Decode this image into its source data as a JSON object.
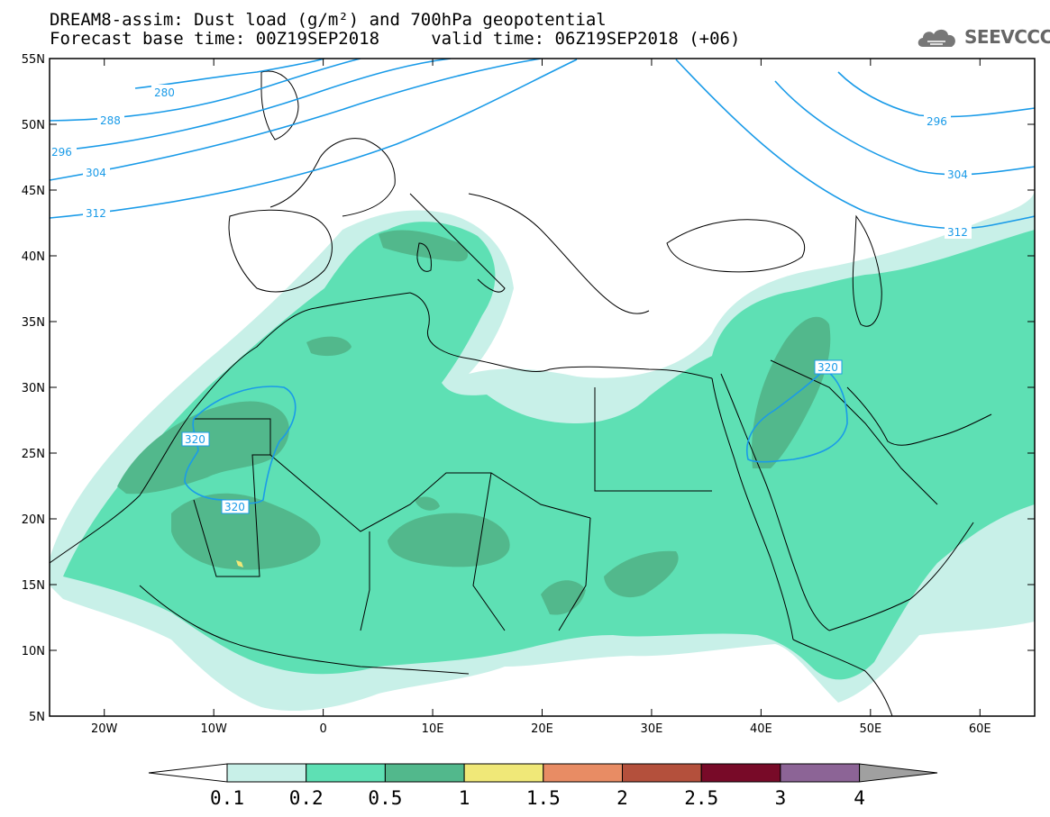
{
  "header": {
    "title": "DREAM8-assim: Dust load (g/m²) and 700hPa geopotential",
    "base_time": "Forecast base time: 00Z19SEP2018     valid time: 06Z19SEP2018 (+06)"
  },
  "logo": {
    "text": "SEEVCCC",
    "icon": "cloud-icon"
  },
  "map": {
    "lon_range": [
      -25,
      65
    ],
    "lat_range": [
      5,
      55
    ],
    "lat_ticks": [
      {
        "value": 55,
        "label": "55N"
      },
      {
        "value": 50,
        "label": "50N"
      },
      {
        "value": 45,
        "label": "45N"
      },
      {
        "value": 40,
        "label": "40N"
      },
      {
        "value": 35,
        "label": "35N"
      },
      {
        "value": 30,
        "label": "30N"
      },
      {
        "value": 25,
        "label": "25N"
      },
      {
        "value": 20,
        "label": "20N"
      },
      {
        "value": 15,
        "label": "15N"
      },
      {
        "value": 10,
        "label": "10N"
      },
      {
        "value": 5,
        "label": "5N"
      }
    ],
    "lon_ticks": [
      {
        "value": -20,
        "label": "20W"
      },
      {
        "value": -10,
        "label": "10W"
      },
      {
        "value": 0,
        "label": "0"
      },
      {
        "value": 10,
        "label": "10E"
      },
      {
        "value": 20,
        "label": "20E"
      },
      {
        "value": 30,
        "label": "30E"
      },
      {
        "value": 40,
        "label": "40E"
      },
      {
        "value": 50,
        "label": "50E"
      },
      {
        "value": 60,
        "label": "60E"
      }
    ],
    "contour_color": "#1a9be8",
    "contour_labels": [
      "280",
      "288",
      "296",
      "304",
      "312",
      "296",
      "304",
      "312",
      "320",
      "320",
      "320"
    ]
  },
  "colorbar": {
    "labels": [
      "0.1",
      "0.2",
      "0.5",
      "1",
      "1.5",
      "2",
      "2.5",
      "3",
      "4"
    ],
    "colors": [
      "#c8f0e8",
      "#5ee0b4",
      "#52b88c",
      "#f0e878",
      "#e88c64",
      "#b4503c",
      "#780a28",
      "#8c6496",
      "#a0a0a0"
    ]
  }
}
